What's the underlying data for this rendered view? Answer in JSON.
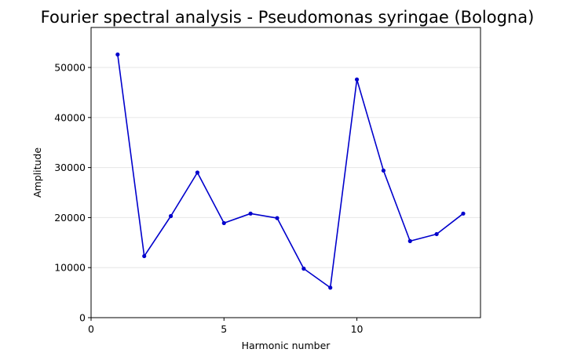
{
  "chart_data": {
    "type": "line",
    "title": "Fourier spectral analysis - Pseudomonas syringae (Bologna)",
    "xlabel": "Harmonic number",
    "ylabel": "Amplitude",
    "xlim": [
      0,
      14.65
    ],
    "ylim": [
      0,
      58000
    ],
    "xticks": [
      0,
      5,
      10
    ],
    "yticks": [
      0,
      10000,
      20000,
      30000,
      40000,
      50000
    ],
    "grid": "horizontal",
    "legend": "none",
    "series": [
      {
        "color": "#0000cc",
        "x": [
          1,
          2,
          3,
          4,
          5,
          6,
          7,
          8,
          9,
          10,
          11,
          12,
          13,
          14
        ],
        "y": [
          52600,
          12300,
          20300,
          29000,
          18900,
          20800,
          19900,
          9800,
          6000,
          47600,
          29400,
          15300,
          16700,
          20800
        ]
      }
    ]
  }
}
